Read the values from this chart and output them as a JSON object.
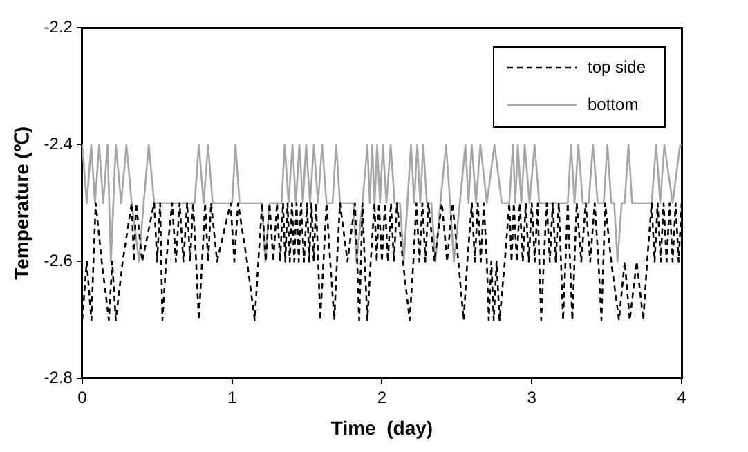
{
  "chart_data": {
    "type": "line",
    "xlabel": "Time  (day)",
    "ylabel": "Temperature (℃)",
    "xlim": [
      0,
      4
    ],
    "xticks": [
      0,
      1,
      2,
      3,
      4
    ],
    "ylim": [
      -2.8,
      -2.2
    ],
    "yticks": [
      -2.8,
      -2.6,
      -2.4,
      -2.2
    ],
    "grid": false,
    "legend": "top right",
    "marker": "none",
    "series": [
      {
        "name": "top side",
        "color": "#000000",
        "line_style": "dashed",
        "x": [
          0,
          0.03,
          0.061,
          0.075,
          0.09,
          0.13,
          0.178,
          0.2,
          0.224,
          0.27,
          0.33,
          0.345,
          0.36,
          0.4,
          0.48,
          0.5,
          0.52,
          0.535,
          0.56,
          0.6,
          0.625,
          0.65,
          0.675,
          0.7,
          0.72,
          0.74,
          0.76,
          0.778,
          0.8,
          0.82,
          0.84,
          0.86,
          0.9,
          0.99,
          1.015,
          1.04,
          1.1,
          1.151,
          1.175,
          1.2,
          1.225,
          1.25,
          1.275,
          1.3,
          1.32,
          1.34,
          1.355,
          1.37,
          1.385,
          1.4,
          1.415,
          1.43,
          1.445,
          1.46,
          1.48,
          1.5,
          1.515,
          1.53,
          1.545,
          1.56,
          1.575,
          1.588,
          1.61,
          1.63,
          1.655,
          1.682,
          1.7,
          1.72,
          1.77,
          1.82,
          1.835,
          1.848,
          1.86,
          1.87,
          1.885,
          1.903,
          1.925,
          1.95,
          1.965,
          1.98,
          2.0,
          2.02,
          2.04,
          2.06,
          2.08,
          2.1,
          2.14,
          2.185,
          2.21,
          2.23,
          2.25,
          2.27,
          2.29,
          2.31,
          2.35,
          2.4,
          2.435,
          2.47,
          2.51,
          2.545,
          2.57,
          2.6,
          2.62,
          2.64,
          2.66,
          2.68,
          2.7,
          2.713,
          2.73,
          2.746,
          2.765,
          2.785,
          2.82,
          2.85,
          2.865,
          2.88,
          2.9,
          2.92,
          2.94,
          2.96,
          2.98,
          3.0,
          3.02,
          3.04,
          3.05,
          3.063,
          3.08,
          3.1,
          3.12,
          3.14,
          3.16,
          3.18,
          3.195,
          3.209,
          3.225,
          3.24,
          3.255,
          3.271,
          3.285,
          3.3,
          3.33,
          3.36,
          3.39,
          3.42,
          3.445,
          3.465,
          3.49,
          3.53,
          3.582,
          3.62,
          3.654,
          3.7,
          3.744,
          3.77,
          3.8,
          3.82,
          3.84,
          3.86,
          3.88,
          3.9,
          3.92,
          3.94,
          3.96,
          3.98,
          4.0
        ],
        "values": [
          -2.7,
          -2.6,
          -2.7,
          -2.6,
          -2.5,
          -2.6,
          -2.7,
          -2.6,
          -2.7,
          -2.6,
          -2.5,
          -2.6,
          -2.5,
          -2.6,
          -2.5,
          -2.6,
          -2.5,
          -2.7,
          -2.6,
          -2.5,
          -2.6,
          -2.5,
          -2.6,
          -2.5,
          -2.6,
          -2.5,
          -2.6,
          -2.7,
          -2.6,
          -2.5,
          -2.6,
          -2.5,
          -2.6,
          -2.5,
          -2.6,
          -2.5,
          -2.6,
          -2.7,
          -2.6,
          -2.5,
          -2.6,
          -2.5,
          -2.6,
          -2.5,
          -2.6,
          -2.5,
          -2.6,
          -2.5,
          -2.6,
          -2.5,
          -2.6,
          -2.5,
          -2.6,
          -2.5,
          -2.6,
          -2.5,
          -2.6,
          -2.5,
          -2.6,
          -2.5,
          -2.6,
          -2.7,
          -2.6,
          -2.5,
          -2.6,
          -2.7,
          -2.6,
          -2.5,
          -2.6,
          -2.5,
          -2.6,
          -2.7,
          -2.6,
          -2.5,
          -2.6,
          -2.7,
          -2.6,
          -2.5,
          -2.6,
          -2.5,
          -2.6,
          -2.5,
          -2.6,
          -2.5,
          -2.6,
          -2.5,
          -2.6,
          -2.7,
          -2.6,
          -2.5,
          -2.6,
          -2.5,
          -2.6,
          -2.5,
          -2.6,
          -2.5,
          -2.6,
          -2.5,
          -2.6,
          -2.7,
          -2.6,
          -2.5,
          -2.6,
          -2.5,
          -2.6,
          -2.5,
          -2.6,
          -2.7,
          -2.6,
          -2.7,
          -2.6,
          -2.7,
          -2.6,
          -2.5,
          -2.6,
          -2.5,
          -2.6,
          -2.5,
          -2.6,
          -2.5,
          -2.6,
          -2.5,
          -2.6,
          -2.5,
          -2.6,
          -2.7,
          -2.6,
          -2.5,
          -2.6,
          -2.5,
          -2.6,
          -2.5,
          -2.6,
          -2.7,
          -2.6,
          -2.5,
          -2.6,
          -2.7,
          -2.6,
          -2.5,
          -2.6,
          -2.5,
          -2.6,
          -2.5,
          -2.6,
          -2.7,
          -2.5,
          -2.6,
          -2.7,
          -2.6,
          -2.7,
          -2.6,
          -2.7,
          -2.6,
          -2.5,
          -2.6,
          -2.5,
          -2.6,
          -2.5,
          -2.6,
          -2.5,
          -2.6,
          -2.5,
          -2.6,
          -2.5
        ]
      },
      {
        "name": "bottom",
        "color": "#a6a6a6",
        "line_style": "solid",
        "x": [
          0,
          0.03,
          0.06,
          0.085,
          0.113,
          0.14,
          0.169,
          0.191,
          0.224,
          0.26,
          0.295,
          0.33,
          0.379,
          0.41,
          0.444,
          0.48,
          0.75,
          0.778,
          0.81,
          0.84,
          0.87,
          1.0,
          1.023,
          1.05,
          1.2,
          1.222,
          1.25,
          1.33,
          1.351,
          1.377,
          1.403,
          1.426,
          1.449,
          1.472,
          1.494,
          1.52,
          1.546,
          1.573,
          1.601,
          1.63,
          1.67,
          1.695,
          1.72,
          1.81,
          1.831,
          1.87,
          1.903,
          1.919,
          1.935,
          1.951,
          1.968,
          1.987,
          2.006,
          2.03,
          2.058,
          2.085,
          2.12,
          2.146,
          2.17,
          2.194,
          2.215,
          2.236,
          2.256,
          2.276,
          2.3,
          2.33,
          2.357,
          2.39,
          2.428,
          2.455,
          2.48,
          2.52,
          2.557,
          2.578,
          2.599,
          2.628,
          2.657,
          2.7,
          2.751,
          2.8,
          2.85,
          2.874,
          2.89,
          2.907,
          2.93,
          2.953,
          2.985,
          3.019,
          3.05,
          3.24,
          3.262,
          3.285,
          3.311,
          3.34,
          3.38,
          3.408,
          3.44,
          3.48,
          3.505,
          3.53,
          3.55,
          3.572,
          3.6,
          3.62,
          3.645,
          3.67,
          3.8,
          3.83,
          3.857,
          3.885,
          3.94,
          3.99,
          4.0
        ],
        "values": [
          -2.4,
          -2.5,
          -2.4,
          -2.5,
          -2.4,
          -2.5,
          -2.4,
          -2.6,
          -2.4,
          -2.5,
          -2.4,
          -2.5,
          -2.6,
          -2.5,
          -2.4,
          -2.5,
          -2.5,
          -2.4,
          -2.5,
          -2.4,
          -2.5,
          -2.5,
          -2.4,
          -2.5,
          -2.5,
          -2.6,
          -2.5,
          -2.5,
          -2.4,
          -2.5,
          -2.4,
          -2.5,
          -2.4,
          -2.5,
          -2.4,
          -2.5,
          -2.4,
          -2.5,
          -2.4,
          -2.5,
          -2.5,
          -2.4,
          -2.5,
          -2.5,
          -2.6,
          -2.5,
          -2.4,
          -2.5,
          -2.4,
          -2.5,
          -2.4,
          -2.5,
          -2.4,
          -2.5,
          -2.4,
          -2.5,
          -2.5,
          -2.6,
          -2.5,
          -2.4,
          -2.5,
          -2.4,
          -2.5,
          -2.4,
          -2.5,
          -2.5,
          -2.6,
          -2.5,
          -2.4,
          -2.5,
          -2.6,
          -2.5,
          -2.4,
          -2.5,
          -2.4,
          -2.5,
          -2.4,
          -2.5,
          -2.4,
          -2.5,
          -2.5,
          -2.4,
          -2.5,
          -2.4,
          -2.5,
          -2.4,
          -2.5,
          -2.4,
          -2.5,
          -2.5,
          -2.4,
          -2.5,
          -2.4,
          -2.5,
          -2.5,
          -2.4,
          -2.5,
          -2.5,
          -2.4,
          -2.5,
          -2.5,
          -2.6,
          -2.5,
          -2.5,
          -2.4,
          -2.5,
          -2.5,
          -2.4,
          -2.5,
          -2.4,
          -2.5,
          -2.4,
          -2.4
        ]
      }
    ]
  }
}
